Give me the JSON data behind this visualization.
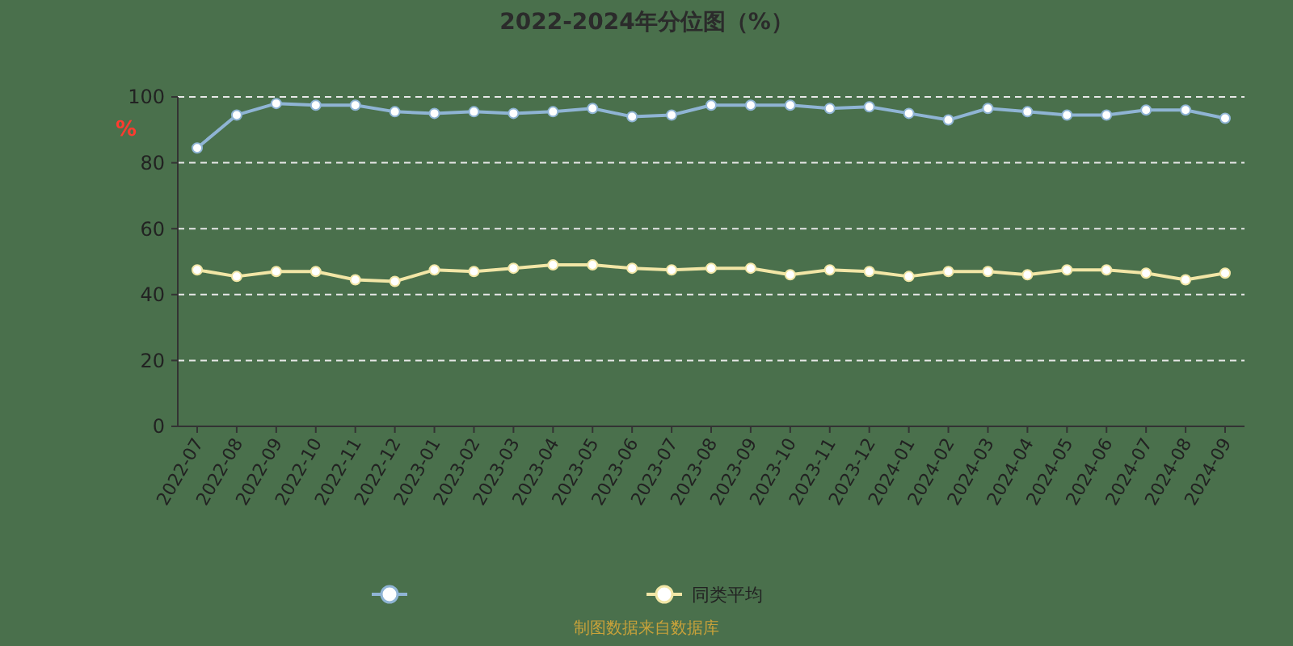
{
  "chart_data": {
    "type": "line",
    "title": "2022-2024年分位图（%）",
    "ylabel": "%",
    "categories": [
      "2022-07",
      "2022-08",
      "2022-09",
      "2022-10",
      "2022-11",
      "2022-12",
      "2023-01",
      "2023-02",
      "2023-03",
      "2023-04",
      "2023-05",
      "2023-06",
      "2023-07",
      "2023-08",
      "2023-09",
      "2023-10",
      "2023-11",
      "2023-12",
      "2024-01",
      "2024-02",
      "2024-03",
      "2024-04",
      "2024-05",
      "2024-06",
      "2024-07",
      "2024-08",
      "2024-09"
    ],
    "series": [
      {
        "color": "#8fb4d4",
        "values": [
          84.5,
          94.5,
          98,
          97.5,
          97.5,
          95.5,
          95,
          95.5,
          95,
          95.5,
          96.5,
          94,
          94.5,
          97.5,
          97.5,
          97.5,
          96.5,
          97,
          95,
          93,
          96.5,
          95.5,
          94.5,
          94.5,
          96,
          96,
          93.5
        ]
      },
      {
        "name": "同类平均",
        "color": "#f2e6a6",
        "values": [
          47.5,
          45.5,
          47,
          47,
          44.5,
          44,
          47.5,
          47,
          48,
          49,
          49,
          48,
          47.5,
          48,
          48,
          46,
          47.5,
          47,
          45.5,
          47,
          47,
          46,
          47.5,
          47.5,
          46.5,
          44.5,
          46.5
        ]
      }
    ],
    "ylim": [
      0,
      100
    ],
    "yticks": [
      0,
      20,
      40,
      60,
      80,
      100
    ],
    "grid": "y",
    "legend": "bottom",
    "marker": "circle",
    "line_style": "solid",
    "annotations": [
      "制图数据来自数据库"
    ]
  }
}
